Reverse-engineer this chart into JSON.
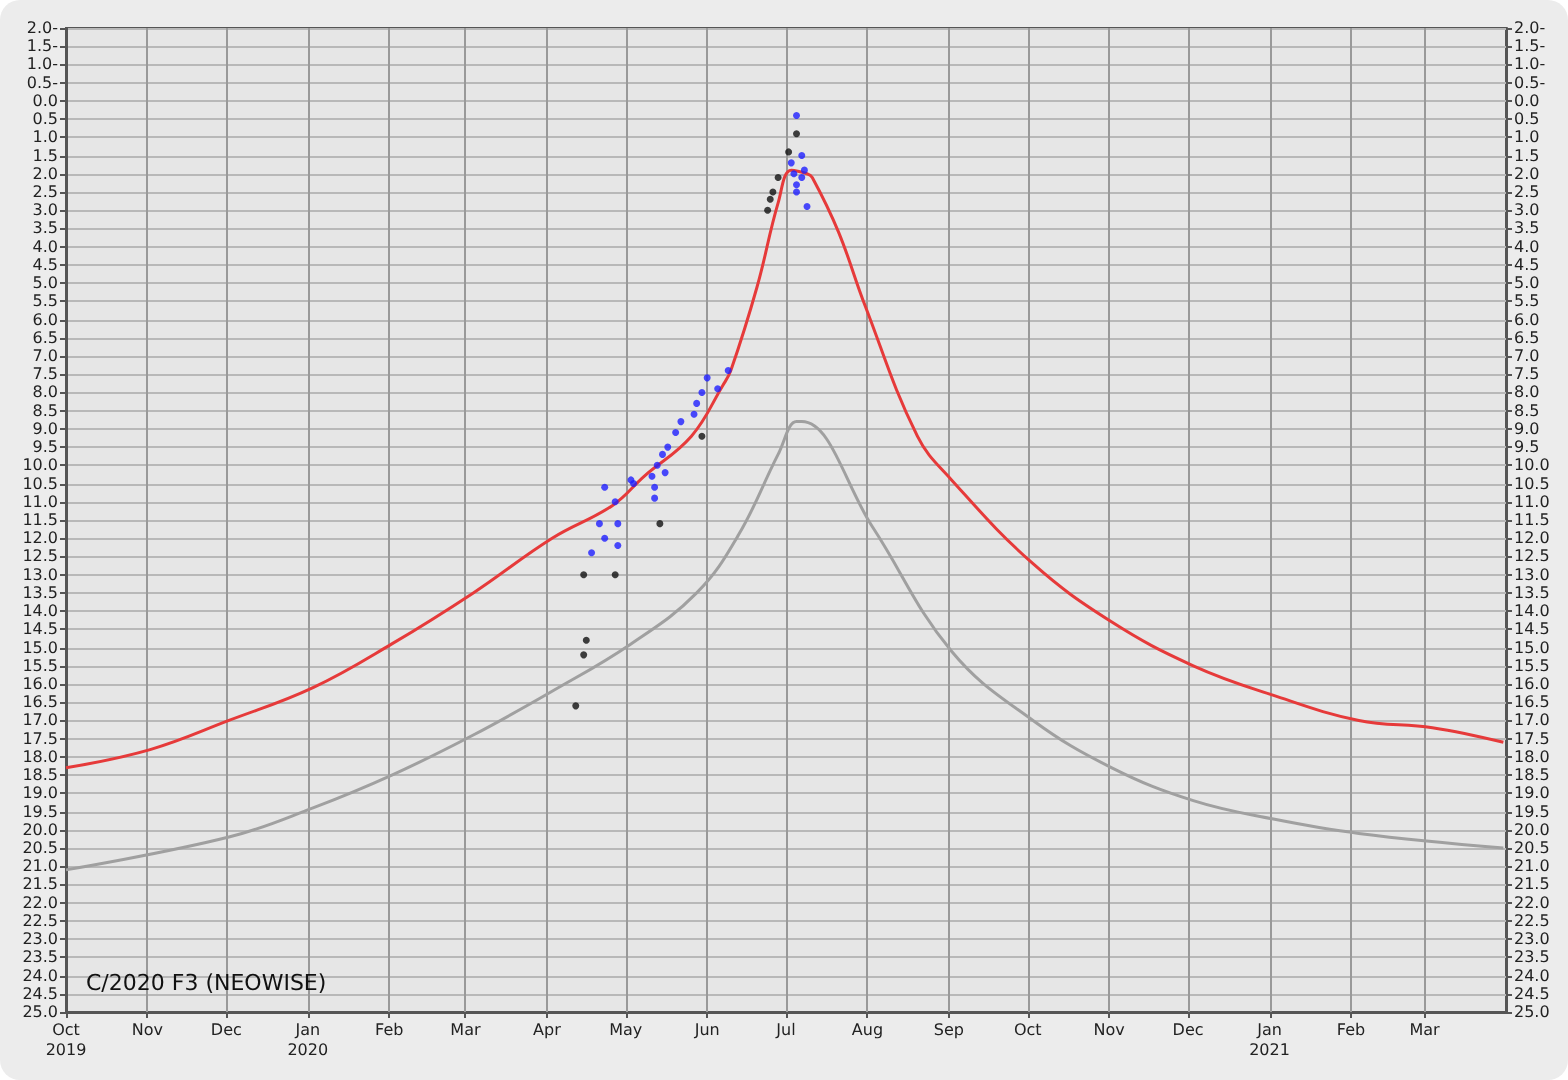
{
  "chart_data": {
    "type": "line",
    "title": "C/2020 F3 (NEOWISE)",
    "xlim": [
      "2019-10-01",
      "2021-04-01"
    ],
    "xticks": [
      {
        "value": "2019-10-01",
        "label": "Oct\n2019"
      },
      {
        "value": "2019-11-01",
        "label": "Nov"
      },
      {
        "value": "2019-12-01",
        "label": "Dec"
      },
      {
        "value": "2020-01-01",
        "label": "Jan\n2020"
      },
      {
        "value": "2020-02-01",
        "label": "Feb"
      },
      {
        "value": "2020-03-01",
        "label": "Mar"
      },
      {
        "value": "2020-04-01",
        "label": "Apr"
      },
      {
        "value": "2020-05-01",
        "label": "May"
      },
      {
        "value": "2020-06-01",
        "label": "Jun"
      },
      {
        "value": "2020-07-01",
        "label": "Jul"
      },
      {
        "value": "2020-08-01",
        "label": "Aug"
      },
      {
        "value": "2020-09-01",
        "label": "Sep"
      },
      {
        "value": "2020-10-01",
        "label": "Oct"
      },
      {
        "value": "2020-11-01",
        "label": "Nov"
      },
      {
        "value": "2020-12-01",
        "label": "Dec"
      },
      {
        "value": "2021-01-01",
        "label": "Jan\n2021"
      },
      {
        "value": "2021-02-01",
        "label": "Feb"
      },
      {
        "value": "2021-03-01",
        "label": "Mar"
      }
    ],
    "ylim": [
      25,
      -2
    ],
    "yticks": [
      {
        "value": -2,
        "label": "2.0-"
      },
      {
        "value": -1.5,
        "label": "1.5-"
      },
      {
        "value": -1,
        "label": "1.0-"
      },
      {
        "value": -0.5,
        "label": "0.5-"
      },
      {
        "value": 0,
        "label": "0.0"
      },
      {
        "value": 0.5,
        "label": "0.5"
      },
      {
        "value": 1,
        "label": "1.0"
      },
      {
        "value": 1.5,
        "label": "1.5"
      },
      {
        "value": 2,
        "label": "2.0"
      },
      {
        "value": 2.5,
        "label": "2.5"
      },
      {
        "value": 3,
        "label": "3.0"
      },
      {
        "value": 3.5,
        "label": "3.5"
      },
      {
        "value": 4,
        "label": "4.0"
      },
      {
        "value": 4.5,
        "label": "4.5"
      },
      {
        "value": 5,
        "label": "5.0"
      },
      {
        "value": 5.5,
        "label": "5.5"
      },
      {
        "value": 6,
        "label": "6.0"
      },
      {
        "value": 6.5,
        "label": "6.5"
      },
      {
        "value": 7,
        "label": "7.0"
      },
      {
        "value": 7.5,
        "label": "7.5"
      },
      {
        "value": 8,
        "label": "8.0"
      },
      {
        "value": 8.5,
        "label": "8.5"
      },
      {
        "value": 9,
        "label": "9.0"
      },
      {
        "value": 9.5,
        "label": "9.5"
      },
      {
        "value": 10,
        "label": "10.0"
      },
      {
        "value": 10.5,
        "label": "10.5"
      },
      {
        "value": 11,
        "label": "11.0"
      },
      {
        "value": 11.5,
        "label": "11.5"
      },
      {
        "value": 12,
        "label": "12.0"
      },
      {
        "value": 12.5,
        "label": "12.5"
      },
      {
        "value": 13,
        "label": "13.0"
      },
      {
        "value": 13.5,
        "label": "13.5"
      },
      {
        "value": 14,
        "label": "14.0"
      },
      {
        "value": 14.5,
        "label": "14.5"
      },
      {
        "value": 15,
        "label": "15.0"
      },
      {
        "value": 15.5,
        "label": "15.5"
      },
      {
        "value": 16,
        "label": "16.0"
      },
      {
        "value": 16.5,
        "label": "16.5"
      },
      {
        "value": 17,
        "label": "17.0"
      },
      {
        "value": 17.5,
        "label": "17.5"
      },
      {
        "value": 18,
        "label": "18.0"
      },
      {
        "value": 18.5,
        "label": "18.5"
      },
      {
        "value": 19,
        "label": "19.0"
      },
      {
        "value": 19.5,
        "label": "19.5"
      },
      {
        "value": 20,
        "label": "20.0"
      },
      {
        "value": 20.5,
        "label": "20.5"
      },
      {
        "value": 21,
        "label": "21.0"
      },
      {
        "value": 21.5,
        "label": "21.5"
      },
      {
        "value": 22,
        "label": "22.0"
      },
      {
        "value": 22.5,
        "label": "22.5"
      },
      {
        "value": 23,
        "label": "23.0"
      },
      {
        "value": 23.5,
        "label": "23.5"
      },
      {
        "value": 24,
        "label": "24.0"
      },
      {
        "value": 24.5,
        "label": "24.5"
      },
      {
        "value": 25,
        "label": "25.0"
      }
    ],
    "y2lim": [
      25,
      -2
    ],
    "y2ticks": [
      {
        "value": -2,
        "label": "2.0-"
      },
      {
        "value": -1.5,
        "label": "1.5-"
      },
      {
        "value": -1,
        "label": "1.0-"
      },
      {
        "value": -0.5,
        "label": "0.5-"
      },
      {
        "value": 0,
        "label": "0.0"
      },
      {
        "value": 0.5,
        "label": "0.5"
      },
      {
        "value": 1,
        "label": "1.0"
      },
      {
        "value": 1.5,
        "label": "1.5"
      },
      {
        "value": 2,
        "label": "2.0"
      },
      {
        "value": 2.5,
        "label": "2.5"
      },
      {
        "value": 3,
        "label": "3.0"
      },
      {
        "value": 3.5,
        "label": "3.5"
      },
      {
        "value": 4,
        "label": "4.0"
      },
      {
        "value": 4.5,
        "label": "4.5"
      },
      {
        "value": 5,
        "label": "5.0"
      },
      {
        "value": 5.5,
        "label": "5.5"
      },
      {
        "value": 6,
        "label": "6.0"
      },
      {
        "value": 6.5,
        "label": "6.5"
      },
      {
        "value": 7,
        "label": "7.0"
      },
      {
        "value": 7.5,
        "label": "7.5"
      },
      {
        "value": 8,
        "label": "8.0"
      },
      {
        "value": 8.5,
        "label": "8.5"
      },
      {
        "value": 9,
        "label": "9.0"
      },
      {
        "value": 9.5,
        "label": "9.5"
      },
      {
        "value": 10,
        "label": "10.0"
      },
      {
        "value": 10.5,
        "label": "10.5"
      },
      {
        "value": 11,
        "label": "11.0"
      },
      {
        "value": 11.5,
        "label": "11.5"
      },
      {
        "value": 12,
        "label": "12.0"
      },
      {
        "value": 12.5,
        "label": "12.5"
      },
      {
        "value": 13,
        "label": "13.0"
      },
      {
        "value": 13.5,
        "label": "13.5"
      },
      {
        "value": 14,
        "label": "14.0"
      },
      {
        "value": 14.5,
        "label": "14.5"
      },
      {
        "value": 15,
        "label": "15.0"
      },
      {
        "value": 15.5,
        "label": "15.5"
      },
      {
        "value": 16,
        "label": "16.0"
      },
      {
        "value": 16.5,
        "label": "16.5"
      },
      {
        "value": 17,
        "label": "17.0"
      },
      {
        "value": 17.5,
        "label": "17.5"
      },
      {
        "value": 18,
        "label": "18.0"
      },
      {
        "value": 18.5,
        "label": "18.5"
      },
      {
        "value": 19,
        "label": "19.0"
      },
      {
        "value": 19.5,
        "label": "19.5"
      },
      {
        "value": 20,
        "label": "20.0"
      },
      {
        "value": 20.5,
        "label": "20.5"
      },
      {
        "value": 21,
        "label": "21.0"
      },
      {
        "value": 21.5,
        "label": "21.5"
      },
      {
        "value": 22,
        "label": "22.0"
      },
      {
        "value": 22.5,
        "label": "22.5"
      },
      {
        "value": 23,
        "label": "23.0"
      },
      {
        "value": 23.5,
        "label": "23.5"
      },
      {
        "value": 24,
        "label": "24.0"
      },
      {
        "value": 24.5,
        "label": "24.5"
      },
      {
        "value": 25,
        "label": "25.0"
      }
    ],
    "grid": true,
    "series": [
      {
        "marker": "none",
        "color": "#a0a0a0",
        "x": [
          "2019-10-01",
          "2019-12-02",
          "2020-01-03",
          "2020-02-02",
          "2020-03-04",
          "2020-04-03",
          "2020-05-03",
          "2020-05-28",
          "2020-06-13",
          "2020-06-28",
          "2020-07-05",
          "2020-07-07",
          "2020-08-03",
          "2020-09-02",
          "2020-10-03",
          "2020-11-02",
          "2020-12-03",
          "2021-01-02",
          "2021-02-04",
          "2021-03-31"
        ],
        "values": [
          21.1,
          20.2,
          19.4,
          18.5,
          17.4,
          16.2,
          14.9,
          13.5,
          11.9,
          9.7,
          8.8,
          8.8,
          11.7,
          15.1,
          17.0,
          18.3,
          19.2,
          19.7,
          20.1,
          20.5
        ]
      },
      {
        "marker": "none",
        "color": "#e63a3a",
        "x": [
          "2019-10-01",
          "2019-11-02",
          "2019-12-02",
          "2020-01-03",
          "2020-02-02",
          "2020-03-04",
          "2020-04-03",
          "2020-04-26",
          "2020-05-08",
          "2020-05-26",
          "2020-06-07",
          "2020-06-10",
          "2020-06-20",
          "2020-06-28",
          "2020-07-03",
          "2020-07-09",
          "2020-07-11",
          "2020-07-21",
          "2020-07-31",
          "2020-08-20",
          "2020-09-02",
          "2020-10-03",
          "2020-11-02",
          "2020-12-03",
          "2021-01-02",
          "2021-02-04",
          "2021-03-04",
          "2021-03-31"
        ],
        "values": [
          18.3,
          17.8,
          17.0,
          16.1,
          14.9,
          13.5,
          12.0,
          11.1,
          10.3,
          9.2,
          7.8,
          7.4,
          5.1,
          2.8,
          1.9,
          2.0,
          2.1,
          3.6,
          5.6,
          9.2,
          10.4,
          12.7,
          14.3,
          15.5,
          16.3,
          17.0,
          17.2,
          17.6
        ]
      },
      {
        "type": "scatter",
        "marker": "circle",
        "color": "#111111",
        "x": [
          "2020-04-15",
          "2020-04-27",
          "2020-04-16",
          "2020-04-15",
          "2020-04-12",
          "2020-05-14",
          "2020-05-30",
          "2020-06-24",
          "2020-06-25",
          "2020-06-26",
          "2020-06-28",
          "2020-07-02",
          "2020-07-05"
        ],
        "values": [
          13.0,
          13.0,
          14.8,
          15.2,
          16.6,
          11.6,
          9.2,
          3.0,
          2.7,
          2.5,
          2.1,
          1.4,
          0.9
        ]
      },
      {
        "type": "scatter",
        "marker": "circle",
        "color": "#1f1fff",
        "x": [
          "2020-07-05",
          "2020-07-03",
          "2020-07-07",
          "2020-07-08",
          "2020-07-04",
          "2020-07-05",
          "2020-07-05",
          "2020-07-09",
          "2020-07-07",
          "2020-06-01",
          "2020-06-09",
          "2020-06-05",
          "2020-05-30",
          "2020-05-28",
          "2020-05-27",
          "2020-05-22",
          "2020-05-20",
          "2020-05-17",
          "2020-05-15",
          "2020-05-13",
          "2020-05-11",
          "2020-05-03",
          "2020-05-04",
          "2020-05-12",
          "2020-05-12",
          "2020-04-23",
          "2020-04-27",
          "2020-04-21",
          "2020-04-28",
          "2020-04-23",
          "2020-04-18",
          "2020-04-28",
          "2020-05-16"
        ],
        "values": [
          0.4,
          1.7,
          1.5,
          1.9,
          2.0,
          2.3,
          2.5,
          2.9,
          2.1,
          7.6,
          7.4,
          7.9,
          8.0,
          8.3,
          8.6,
          8.8,
          9.1,
          9.5,
          9.7,
          10.0,
          10.3,
          10.4,
          10.5,
          10.6,
          10.9,
          10.6,
          11.0,
          11.6,
          11.6,
          12.0,
          12.4,
          12.2,
          10.2
        ]
      }
    ]
  }
}
